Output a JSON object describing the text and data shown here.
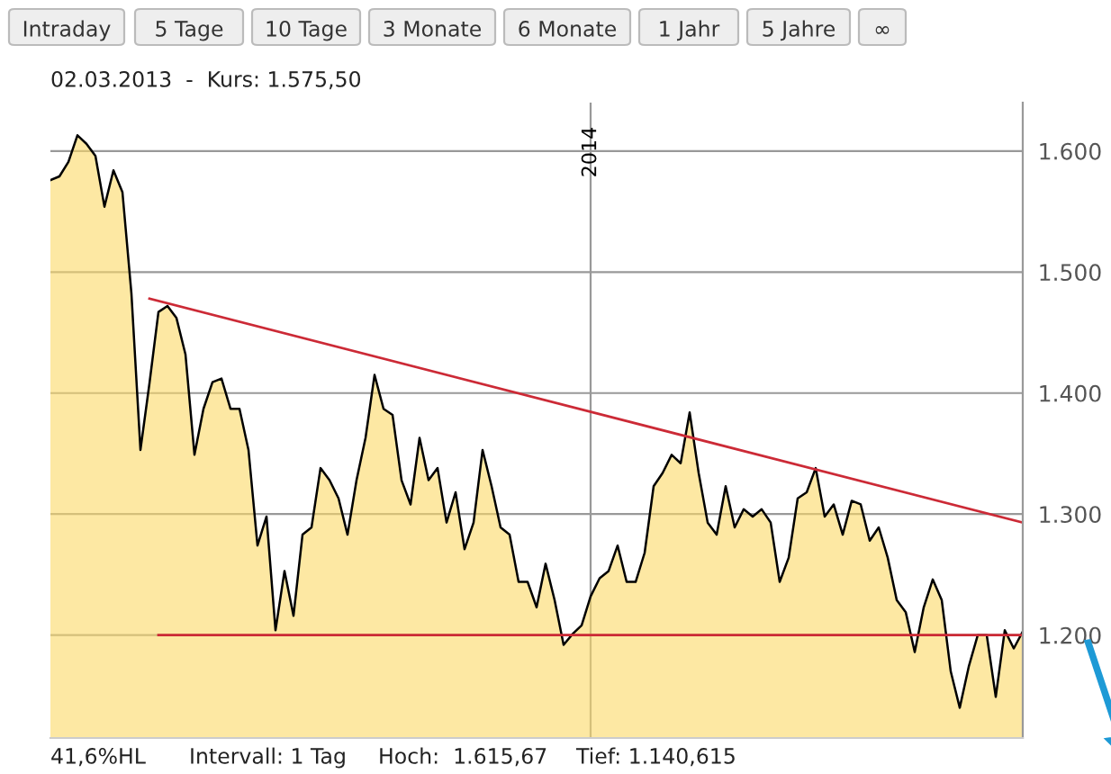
{
  "chart_data": {
    "type": "area",
    "annotations": [
      "Intraday",
      "5 Tage",
      "10 Tage",
      "3 Monate",
      "6 Monate",
      "1 Jahr",
      "5 Jahre",
      "∞",
      "02.03.2013  -  Kurs: 1.575,50",
      "41,6%HL",
      "Intervall: 1 Tag",
      "Hoch:  1.615,67",
      "Tief: 1.140,615"
    ],
    "categories": [
      null,
      null,
      null,
      null,
      null,
      null,
      null,
      null,
      null,
      null,
      null,
      null,
      null,
      null,
      null,
      null,
      null,
      null,
      null,
      null,
      null,
      null,
      null,
      null,
      null,
      null,
      null,
      null,
      null,
      null,
      null,
      null,
      null,
      null,
      null,
      null,
      null,
      null,
      null,
      null,
      null,
      null,
      null,
      null,
      null,
      null,
      null,
      null,
      null,
      null,
      null,
      null,
      null,
      null,
      null,
      null,
      null,
      null,
      null,
      null,
      "2014",
      null,
      null,
      null,
      null,
      null,
      null,
      null,
      null,
      null,
      null,
      null,
      null,
      null,
      null,
      null,
      null,
      null,
      null,
      null,
      null,
      null,
      null,
      null,
      null,
      null,
      null,
      null,
      null,
      null,
      null,
      null,
      null,
      null,
      null,
      null,
      null,
      null,
      null,
      null,
      null,
      null,
      null,
      null,
      null,
      null,
      null,
      null,
      null
    ],
    "series": [
      {
        "color": "#000000",
        "values": [
          1576,
          1579,
          1591,
          1613,
          1606,
          1596,
          1554,
          1584,
          1566,
          1482,
          1353,
          1408,
          1467,
          1472,
          1462,
          1432,
          1349,
          1387,
          1409,
          1412,
          1387,
          1387,
          1353,
          1274,
          1298,
          1204,
          1253,
          1216,
          1283,
          1289,
          1338,
          1328,
          1313,
          1283,
          1328,
          1363,
          1415,
          1387,
          1382,
          1328,
          1308,
          1363,
          1328,
          1338,
          1293,
          1318,
          1271,
          1293,
          1353,
          1323,
          1289,
          1283,
          1244,
          1244,
          1223,
          1259,
          1229,
          1192,
          1201,
          1208,
          1232,
          1247,
          1253,
          1274,
          1244,
          1244,
          1268,
          1323,
          1334,
          1349,
          1342,
          1384,
          1334,
          1293,
          1283,
          1323,
          1289,
          1304,
          1298,
          1304,
          1293,
          1244,
          1264,
          1313,
          1318,
          1338,
          1298,
          1308,
          1283,
          1311,
          1308,
          1278,
          1289,
          1264,
          1229,
          1219,
          1186,
          1223,
          1246,
          1229,
          1170,
          1140,
          1174,
          1200,
          1200,
          1149,
          1204,
          1189,
          1203
        ]
      },
      {
        "type": "line",
        "color": "#cc2a36",
        "values": [
          null,
          null,
          null,
          null,
          null,
          null,
          null,
          null,
          null,
          null,
          null,
          1478,
          null,
          null,
          null,
          null,
          null,
          null,
          null,
          null,
          null,
          null,
          null,
          null,
          null,
          null,
          null,
          null,
          null,
          null,
          null,
          null,
          null,
          null,
          null,
          null,
          null,
          null,
          null,
          null,
          null,
          null,
          null,
          null,
          null,
          null,
          null,
          null,
          null,
          null,
          null,
          null,
          null,
          null,
          null,
          null,
          null,
          null,
          null,
          null,
          null,
          null,
          null,
          null,
          null,
          null,
          null,
          null,
          null,
          null,
          null,
          null,
          null,
          null,
          null,
          null,
          null,
          null,
          null,
          null,
          null,
          null,
          null,
          null,
          null,
          null,
          null,
          null,
          null,
          null,
          null,
          null,
          null,
          null,
          null,
          null,
          null,
          null,
          null,
          null,
          null,
          null,
          null,
          null,
          null,
          null,
          null,
          null,
          1293
        ]
      },
      {
        "type": "line",
        "color": "#cc2a36",
        "values": [
          null,
          null,
          null,
          null,
          null,
          null,
          null,
          null,
          null,
          null,
          null,
          null,
          1200,
          null,
          null,
          null,
          null,
          null,
          null,
          null,
          null,
          null,
          null,
          null,
          null,
          null,
          null,
          null,
          null,
          null,
          null,
          null,
          null,
          null,
          null,
          null,
          null,
          null,
          null,
          null,
          null,
          null,
          null,
          null,
          null,
          null,
          null,
          null,
          null,
          null,
          null,
          null,
          null,
          null,
          null,
          null,
          null,
          null,
          null,
          null,
          null,
          null,
          null,
          null,
          null,
          null,
          null,
          null,
          null,
          null,
          null,
          null,
          null,
          null,
          null,
          null,
          null,
          null,
          null,
          null,
          null,
          null,
          null,
          null,
          null,
          null,
          null,
          null,
          null,
          null,
          null,
          null,
          null,
          null,
          null,
          null,
          null,
          null,
          null,
          null,
          null,
          null,
          null,
          null,
          null,
          null,
          null,
          null,
          1200
        ]
      }
    ],
    "ylim": [
      1115,
      1640
    ],
    "yticks": [
      {
        "value": 1200,
        "label": "1.200"
      },
      {
        "value": 1300,
        "label": "1.300"
      },
      {
        "value": 1400,
        "label": "1.400"
      },
      {
        "value": 1500,
        "label": "1.500"
      },
      {
        "value": 1600,
        "label": "1.600"
      }
    ],
    "grid": true
  }
}
